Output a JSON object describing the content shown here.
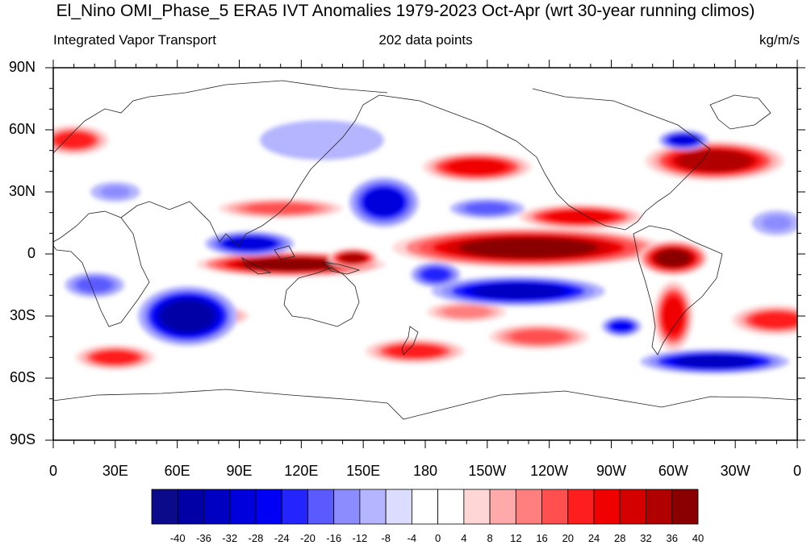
{
  "title": "El_Nino OMI_Phase_5 ERA5 IVT Anomalies 1979-2023 Oct-Apr (wrt 30-year running climos)",
  "subtitle_left": "Integrated Vapor Transport",
  "subtitle_center": "202 data points",
  "subtitle_right": "kg/m/s",
  "lat_labels": [
    "90N",
    "60N",
    "30N",
    "0",
    "30S",
    "60S",
    "90S"
  ],
  "lon_labels": [
    "0",
    "30E",
    "60E",
    "90E",
    "120E",
    "150E",
    "180",
    "150W",
    "120W",
    "90W",
    "60W",
    "30W",
    "0"
  ],
  "colorbar": {
    "labels": [
      "-40",
      "-36",
      "-32",
      "-28",
      "-24",
      "-20",
      "-16",
      "-12",
      "-8",
      "-4",
      "0",
      "4",
      "8",
      "12",
      "16",
      "20",
      "24",
      "28",
      "32",
      "36",
      "40"
    ],
    "colors": [
      "#0a0a8a",
      "#0000a6",
      "#0000c2",
      "#0000dc",
      "#0000f5",
      "#2424ff",
      "#5a5aff",
      "#8c8cff",
      "#b4b4ff",
      "#dcdcff",
      "#ffffff",
      "#ffffff",
      "#ffd6d6",
      "#ffaaaa",
      "#ff7e7e",
      "#ff4f4f",
      "#ff1e1e",
      "#f00000",
      "#d40000",
      "#b00000",
      "#8a0000"
    ]
  },
  "map": {
    "lon_range": [
      0,
      360
    ],
    "lat_range": [
      -90,
      90
    ],
    "anomaly_blobs": [
      {
        "lon": 115,
        "lat": -5,
        "rx": 38,
        "ry": 5,
        "value": 40
      },
      {
        "lon": 145,
        "lat": -2,
        "rx": 10,
        "ry": 4,
        "value": 36
      },
      {
        "lon": 230,
        "lat": 3,
        "rx": 55,
        "ry": 8,
        "value": 40
      },
      {
        "lon": 300,
        "lat": -2,
        "rx": 14,
        "ry": 7,
        "value": 40
      },
      {
        "lon": 255,
        "lat": 18,
        "rx": 25,
        "ry": 5,
        "value": 28
      },
      {
        "lon": 205,
        "lat": 42,
        "rx": 22,
        "ry": 6,
        "value": 28
      },
      {
        "lon": 320,
        "lat": 45,
        "rx": 28,
        "ry": 8,
        "value": 36
      },
      {
        "lon": 10,
        "lat": 55,
        "rx": 14,
        "ry": 6,
        "value": 24
      },
      {
        "lon": 300,
        "lat": -30,
        "rx": 8,
        "ry": 14,
        "value": 28
      },
      {
        "lon": 350,
        "lat": -32,
        "rx": 18,
        "ry": 6,
        "value": 24
      },
      {
        "lon": 30,
        "lat": -50,
        "rx": 16,
        "ry": 5,
        "value": 24
      },
      {
        "lon": 175,
        "lat": -47,
        "rx": 20,
        "ry": 5,
        "value": 24
      },
      {
        "lon": 235,
        "lat": -40,
        "rx": 20,
        "ry": 5,
        "value": 20
      },
      {
        "lon": 200,
        "lat": -28,
        "rx": 16,
        "ry": 4,
        "value": 16
      },
      {
        "lon": 80,
        "lat": -30,
        "rx": 12,
        "ry": 4,
        "value": 16
      },
      {
        "lon": 110,
        "lat": 22,
        "rx": 25,
        "ry": 4,
        "value": 20
      },
      {
        "lon": 95,
        "lat": 5,
        "rx": 18,
        "ry": 5,
        "value": -28
      },
      {
        "lon": 65,
        "lat": -30,
        "rx": 20,
        "ry": 12,
        "value": -36
      },
      {
        "lon": 225,
        "lat": -18,
        "rx": 35,
        "ry": 6,
        "value": -32
      },
      {
        "lon": 160,
        "lat": 25,
        "rx": 14,
        "ry": 10,
        "value": -28
      },
      {
        "lon": 320,
        "lat": -52,
        "rx": 30,
        "ry": 5,
        "value": -32
      },
      {
        "lon": 305,
        "lat": 55,
        "rx": 10,
        "ry": 4,
        "value": -28
      },
      {
        "lon": 275,
        "lat": -35,
        "rx": 8,
        "ry": 4,
        "value": -24
      },
      {
        "lon": 20,
        "lat": -15,
        "rx": 12,
        "ry": 5,
        "value": -16
      },
      {
        "lon": 185,
        "lat": -10,
        "rx": 10,
        "ry": 5,
        "value": -20
      },
      {
        "lon": 210,
        "lat": 22,
        "rx": 15,
        "ry": 4,
        "value": -16
      },
      {
        "lon": 30,
        "lat": 30,
        "rx": 10,
        "ry": 4,
        "value": -12
      },
      {
        "lon": 350,
        "lat": 15,
        "rx": 10,
        "ry": 5,
        "value": -12
      },
      {
        "lon": 130,
        "lat": 55,
        "rx": 25,
        "ry": 8,
        "value": -8
      }
    ]
  }
}
